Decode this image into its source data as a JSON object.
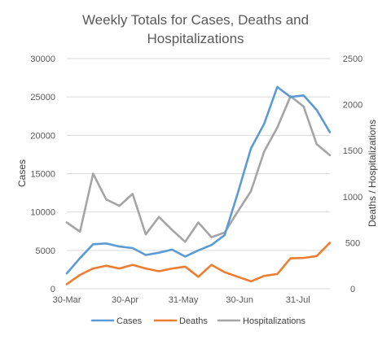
{
  "chart_data": {
    "type": "line",
    "title": [
      "Weekly Totals for Cases, Deaths and",
      "Hospitalizations"
    ],
    "ylabel_left": "Cases",
    "ylabel_right": "Deaths / Hospitalizations",
    "ylim_left": [
      0,
      30000
    ],
    "ylim_right": [
      0,
      2500
    ],
    "yticks_left": [
      "0",
      "5000",
      "10000",
      "15000",
      "20000",
      "25000",
      "30000"
    ],
    "yticks_right": [
      "0",
      "500",
      "1000",
      "1500",
      "2000",
      "2500"
    ],
    "xtick_labels": [
      {
        "label": "30-Mar",
        "index": 0
      },
      {
        "label": "30-Apr",
        "index": 4.43
      },
      {
        "label": "31-May",
        "index": 8.86
      },
      {
        "label": "30-Jun",
        "index": 13.14
      },
      {
        "label": "31-Jul",
        "index": 17.57
      }
    ],
    "x": [
      "30-Mar",
      "6-Apr",
      "13-Apr",
      "20-Apr",
      "27-Apr",
      "4-May",
      "11-May",
      "18-May",
      "25-May",
      "1-Jun",
      "8-Jun",
      "15-Jun",
      "22-Jun",
      "29-Jun",
      "6-Jul",
      "13-Jul",
      "20-Jul",
      "27-Jul",
      "3-Aug",
      "10-Aug",
      "17-Aug"
    ],
    "gridlines": true,
    "legend_position": "bottom",
    "series": [
      {
        "name": "Cases",
        "axis": "left",
        "color": "#5B9BD5",
        "values": [
          2000,
          4000,
          5800,
          5900,
          5500,
          5300,
          4400,
          4700,
          5100,
          4200,
          5000,
          5700,
          7000,
          12500,
          18300,
          21500,
          26300,
          25000,
          25200,
          23300,
          20400
        ]
      },
      {
        "name": "Deaths",
        "axis": "right",
        "color": "#ED7D31",
        "values": [
          50,
          150,
          220,
          250,
          220,
          260,
          220,
          190,
          220,
          240,
          130,
          260,
          180,
          130,
          80,
          140,
          160,
          330,
          335,
          355,
          500
        ]
      },
      {
        "name": "Hospitalizations",
        "axis": "right",
        "color": "#A5A5A5",
        "values": [
          720,
          620,
          1250,
          970,
          900,
          1030,
          590,
          780,
          640,
          510,
          720,
          560,
          610,
          840,
          1060,
          1490,
          1750,
          2090,
          1980,
          1570,
          1450
        ]
      }
    ]
  }
}
